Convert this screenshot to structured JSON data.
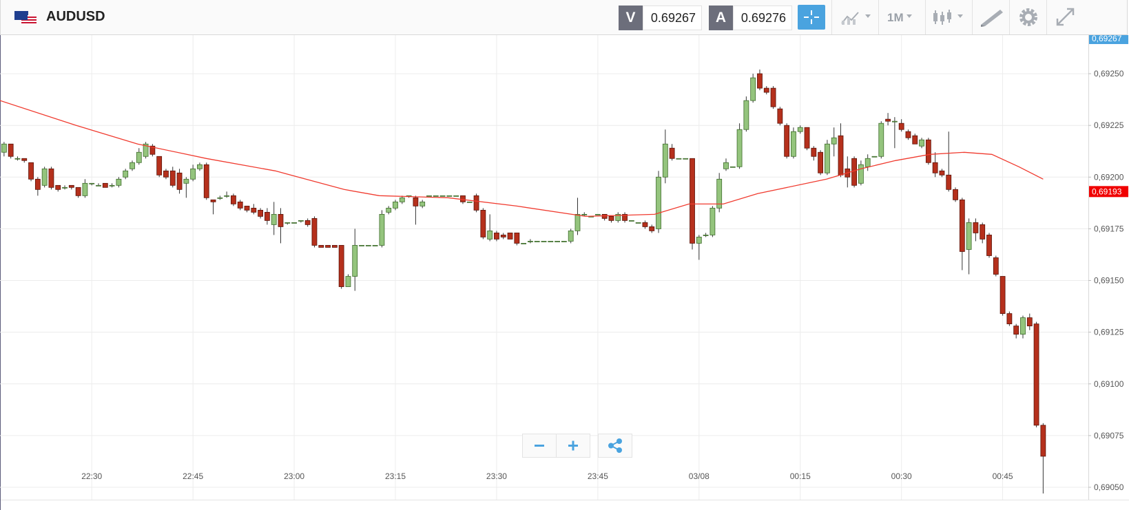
{
  "header": {
    "symbol": "AUDUSD",
    "bid_label": "V",
    "bid": "0.69267",
    "ask_label": "A",
    "ask": "0.69276",
    "timeframe": "1M"
  },
  "chart_data": {
    "type": "candlestick",
    "x": [
      17,
      18,
      19,
      20,
      21,
      22,
      23,
      24,
      25,
      26,
      27,
      28,
      29,
      30,
      31,
      32,
      33,
      34,
      35,
      36,
      37,
      38,
      39,
      40,
      41,
      42,
      43,
      44,
      45,
      46,
      47,
      48,
      49,
      50,
      51,
      52,
      53,
      54,
      55,
      56,
      57,
      58,
      59,
      60,
      61,
      62,
      63,
      64,
      65,
      66,
      67,
      68,
      69,
      70,
      71,
      72,
      73,
      74,
      75,
      76,
      77,
      78,
      79,
      80,
      81,
      82,
      83,
      84,
      85,
      86,
      87,
      88,
      89,
      90,
      91,
      92,
      93,
      94,
      95,
      96,
      97,
      98,
      99,
      100,
      101,
      102,
      103,
      104,
      105,
      106,
      107,
      108,
      109,
      110,
      111,
      112,
      113,
      114,
      115,
      116,
      117,
      118,
      119,
      120,
      121,
      122,
      123,
      124,
      125,
      126,
      127,
      128,
      129,
      130,
      131,
      132,
      133,
      134,
      135,
      136,
      137,
      138,
      139,
      140,
      141,
      142,
      143,
      144,
      145,
      146,
      147,
      148,
      149,
      150,
      151,
      152,
      153,
      154,
      155,
      156,
      157,
      158,
      159,
      160,
      161,
      162,
      163,
      164,
      165,
      166,
      167,
      168,
      169,
      170,
      171
    ],
    "candles": [
      [
        0.69212,
        0.69217,
        0.6921,
        0.69216
      ],
      [
        0.69216,
        0.69216,
        0.69209,
        0.6921
      ],
      [
        0.69209,
        0.6921,
        0.69208,
        0.69209
      ],
      [
        0.69209,
        0.69209,
        0.69207,
        0.69208
      ],
      [
        0.69207,
        0.69207,
        0.69198,
        0.69199
      ],
      [
        0.69199,
        0.692,
        0.69191,
        0.69194
      ],
      [
        0.69196,
        0.69205,
        0.69195,
        0.69204
      ],
      [
        0.69204,
        0.69205,
        0.69194,
        0.69195
      ],
      [
        0.69196,
        0.69196,
        0.69193,
        0.69194
      ],
      [
        0.69195,
        0.69196,
        0.69194,
        0.69195
      ],
      [
        0.69196,
        0.69196,
        0.69194,
        0.69195
      ],
      [
        0.69195,
        0.69195,
        0.6919,
        0.69191
      ],
      [
        0.69191,
        0.69199,
        0.6919,
        0.69197
      ],
      [
        0.69197,
        0.69197,
        0.69196,
        0.69197
      ],
      [
        0.69196,
        0.69197,
        0.69196,
        0.69196
      ],
      [
        0.69197,
        0.69197,
        0.69195,
        0.69195
      ],
      [
        0.69196,
        0.69197,
        0.69195,
        0.69196
      ],
      [
        0.69196,
        0.692,
        0.69195,
        0.69199
      ],
      [
        0.692,
        0.69204,
        0.69199,
        0.69203
      ],
      [
        0.69204,
        0.69208,
        0.69203,
        0.69207
      ],
      [
        0.69207,
        0.69214,
        0.69206,
        0.69212
      ],
      [
        0.6921,
        0.69217,
        0.69209,
        0.69216
      ],
      [
        0.69215,
        0.69216,
        0.6921,
        0.69211
      ],
      [
        0.6921,
        0.6921,
        0.692,
        0.69201
      ],
      [
        0.69203,
        0.69204,
        0.69199,
        0.692
      ],
      [
        0.69203,
        0.69205,
        0.69195,
        0.69196
      ],
      [
        0.69202,
        0.69204,
        0.69192,
        0.69194
      ],
      [
        0.69197,
        0.692,
        0.6919,
        0.69199
      ],
      [
        0.69199,
        0.69206,
        0.69198,
        0.69204
      ],
      [
        0.69204,
        0.69207,
        0.69203,
        0.69206
      ],
      [
        0.69206,
        0.69207,
        0.69189,
        0.6919
      ],
      [
        0.69189,
        0.69189,
        0.69182,
        0.69188
      ],
      [
        0.6919,
        0.69191,
        0.69189,
        0.6919
      ],
      [
        0.69191,
        0.69193,
        0.6919,
        0.69191
      ],
      [
        0.69191,
        0.69192,
        0.69186,
        0.69187
      ],
      [
        0.69188,
        0.69189,
        0.69184,
        0.69185
      ],
      [
        0.69186,
        0.69186,
        0.69183,
        0.69184
      ],
      [
        0.69185,
        0.69187,
        0.69182,
        0.69183
      ],
      [
        0.69184,
        0.69185,
        0.6918,
        0.69181
      ],
      [
        0.69183,
        0.69185,
        0.69177,
        0.69179
      ],
      [
        0.69177,
        0.69188,
        0.69172,
        0.69182
      ],
      [
        0.69182,
        0.69185,
        0.69168,
        0.69176
      ],
      [
        0.69178,
        0.69178,
        0.69177,
        0.69178
      ],
      [
        0.69178,
        0.69178,
        0.69178,
        0.69178
      ],
      [
        0.69179,
        0.69179,
        0.69178,
        0.69179
      ],
      [
        0.69179,
        0.6918,
        0.69176,
        0.69177
      ],
      [
        0.6918,
        0.69181,
        0.69166,
        0.69167
      ],
      [
        0.69167,
        0.69167,
        0.69166,
        0.69166
      ],
      [
        0.69167,
        0.69167,
        0.69166,
        0.69166
      ],
      [
        0.69167,
        0.69167,
        0.69166,
        0.69166
      ],
      [
        0.69167,
        0.69167,
        0.69146,
        0.69147
      ],
      [
        0.69147,
        0.69153,
        0.69147,
        0.69152
      ],
      [
        0.69152,
        0.69175,
        0.69145,
        0.69167
      ],
      [
        0.69167,
        0.69167,
        0.69167,
        0.69167
      ],
      [
        0.69167,
        0.69167,
        0.69167,
        0.69167
      ],
      [
        0.69167,
        0.69167,
        0.69167,
        0.69167
      ],
      [
        0.69167,
        0.69184,
        0.69166,
        0.69182
      ],
      [
        0.69183,
        0.69186,
        0.69182,
        0.69185
      ],
      [
        0.69185,
        0.69189,
        0.69184,
        0.69188
      ],
      [
        0.69188,
        0.69191,
        0.69187,
        0.6919
      ],
      [
        0.69191,
        0.69191,
        0.6919,
        0.69191
      ],
      [
        0.6919,
        0.69191,
        0.69177,
        0.69186
      ],
      [
        0.69186,
        0.69189,
        0.69185,
        0.69188
      ],
      [
        0.69191,
        0.69191,
        0.69191,
        0.69191
      ],
      [
        0.69191,
        0.69191,
        0.69191,
        0.69191
      ],
      [
        0.69191,
        0.69191,
        0.69191,
        0.69191
      ],
      [
        0.69191,
        0.69191,
        0.69191,
        0.69191
      ],
      [
        0.69191,
        0.69191,
        0.69191,
        0.69191
      ],
      [
        0.69191,
        0.69191,
        0.69187,
        0.69188
      ],
      [
        0.69188,
        0.69188,
        0.69188,
        0.69188
      ],
      [
        0.69191,
        0.69192,
        0.69183,
        0.69184
      ],
      [
        0.69184,
        0.69185,
        0.6917,
        0.69171
      ],
      [
        0.6917,
        0.69182,
        0.69169,
        0.69174
      ],
      [
        0.69173,
        0.69174,
        0.69169,
        0.6917
      ],
      [
        0.69172,
        0.69173,
        0.6917,
        0.69171
      ],
      [
        0.69173,
        0.69173,
        0.6917,
        0.6917
      ],
      [
        0.69173,
        0.69173,
        0.69167,
        0.69168
      ],
      [
        0.69168,
        0.69168,
        0.69168,
        0.69168
      ],
      [
        0.69169,
        0.6917,
        0.69168,
        0.69169
      ],
      [
        0.69169,
        0.69169,
        0.69169,
        0.69169
      ],
      [
        0.69169,
        0.69169,
        0.69169,
        0.69169
      ],
      [
        0.69169,
        0.69169,
        0.69169,
        0.69169
      ],
      [
        0.69169,
        0.69169,
        0.69169,
        0.69169
      ],
      [
        0.69169,
        0.69169,
        0.69169,
        0.69169
      ],
      [
        0.69169,
        0.69175,
        0.69168,
        0.69174
      ],
      [
        0.69174,
        0.6919,
        0.69172,
        0.69182
      ],
      [
        0.69182,
        0.69183,
        0.69181,
        0.69182
      ],
      [
        0.69181,
        0.69181,
        0.69181,
        0.69181
      ],
      [
        0.69182,
        0.69182,
        0.69182,
        0.69182
      ],
      [
        0.69182,
        0.69182,
        0.69179,
        0.6918
      ],
      [
        0.69181,
        0.69181,
        0.69178,
        0.69179
      ],
      [
        0.69179,
        0.69183,
        0.69178,
        0.69182
      ],
      [
        0.69182,
        0.69183,
        0.69178,
        0.69179
      ],
      [
        0.69179,
        0.69179,
        0.69179,
        0.69179
      ],
      [
        0.69178,
        0.69178,
        0.69178,
        0.69178
      ],
      [
        0.69178,
        0.69179,
        0.69175,
        0.69176
      ],
      [
        0.69176,
        0.69177,
        0.69173,
        0.69174
      ],
      [
        0.69175,
        0.69203,
        0.69173,
        0.692
      ],
      [
        0.692,
        0.69223,
        0.69197,
        0.69216
      ],
      [
        0.69214,
        0.69216,
        0.69208,
        0.69209
      ],
      [
        0.69209,
        0.69209,
        0.69209,
        0.69209
      ],
      [
        0.69209,
        0.69209,
        0.69209,
        0.69209
      ],
      [
        0.69209,
        0.69209,
        0.69165,
        0.69168
      ],
      [
        0.69168,
        0.69172,
        0.6916,
        0.69171
      ],
      [
        0.69172,
        0.69173,
        0.69171,
        0.69172
      ],
      [
        0.69172,
        0.69186,
        0.69171,
        0.69185
      ],
      [
        0.69185,
        0.69202,
        0.69183,
        0.69199
      ],
      [
        0.69204,
        0.69209,
        0.69203,
        0.69207
      ],
      [
        0.69205,
        0.69205,
        0.69205,
        0.69205
      ],
      [
        0.69205,
        0.69226,
        0.69204,
        0.69223
      ],
      [
        0.69223,
        0.69239,
        0.69222,
        0.69237
      ],
      [
        0.69237,
        0.6925,
        0.69236,
        0.69248
      ],
      [
        0.6925,
        0.69252,
        0.69242,
        0.69243
      ],
      [
        0.69243,
        0.69244,
        0.6924,
        0.69241
      ],
      [
        0.69243,
        0.69244,
        0.69233,
        0.69234
      ],
      [
        0.69233,
        0.69234,
        0.69225,
        0.69226
      ],
      [
        0.69225,
        0.69226,
        0.69209,
        0.6921
      ],
      [
        0.6921,
        0.69224,
        0.69209,
        0.69222
      ],
      [
        0.69222,
        0.69225,
        0.69221,
        0.69224
      ],
      [
        0.69224,
        0.69224,
        0.69213,
        0.69214
      ],
      [
        0.69214,
        0.69215,
        0.69208,
        0.6921
      ],
      [
        0.69212,
        0.69213,
        0.69201,
        0.69202
      ],
      [
        0.69202,
        0.69218,
        0.69201,
        0.69216
      ],
      [
        0.69216,
        0.69224,
        0.6921,
        0.69219
      ],
      [
        0.6922,
        0.69226,
        0.692,
        0.69201
      ],
      [
        0.69204,
        0.6921,
        0.69195,
        0.692
      ],
      [
        0.69209,
        0.6921,
        0.69195,
        0.69196
      ],
      [
        0.69197,
        0.69208,
        0.69196,
        0.69206
      ],
      [
        0.69205,
        0.69211,
        0.69203,
        0.69209
      ],
      [
        0.6921,
        0.6921,
        0.6921,
        0.6921
      ],
      [
        0.6921,
        0.69227,
        0.69209,
        0.69226
      ],
      [
        0.69228,
        0.69231,
        0.69225,
        0.69227
      ],
      [
        0.69227,
        0.69229,
        0.69214,
        0.69227
      ],
      [
        0.69226,
        0.69228,
        0.69222,
        0.69223
      ],
      [
        0.69222,
        0.69223,
        0.69218,
        0.69219
      ],
      [
        0.6922,
        0.69221,
        0.69216,
        0.69216
      ],
      [
        0.69215,
        0.69219,
        0.69214,
        0.69218
      ],
      [
        0.69218,
        0.69219,
        0.69206,
        0.69207
      ],
      [
        0.69207,
        0.69212,
        0.692,
        0.69202
      ],
      [
        0.69203,
        0.69204,
        0.692,
        0.69201
      ],
      [
        0.69201,
        0.69222,
        0.69193,
        0.69194
      ],
      [
        0.69194,
        0.69195,
        0.69188,
        0.69189
      ],
      [
        0.69189,
        0.6919,
        0.69155,
        0.69164
      ],
      [
        0.69165,
        0.6918,
        0.69153,
        0.69178
      ],
      [
        0.69178,
        0.6918,
        0.69169,
        0.69173
      ],
      [
        0.69177,
        0.69178,
        0.69168,
        0.6917
      ],
      [
        0.69172,
        0.69173,
        0.69161,
        0.69162
      ],
      [
        0.69161,
        0.69162,
        0.69152,
        0.69153
      ],
      [
        0.69152,
        0.69152,
        0.69133,
        0.69134
      ],
      [
        0.69134,
        0.69135,
        0.69128,
        0.69129
      ],
      [
        0.69128,
        0.69129,
        0.69122,
        0.69124
      ],
      [
        0.69124,
        0.69133,
        0.69122,
        0.69132
      ],
      [
        0.69132,
        0.69134,
        0.69126,
        0.69128
      ],
      [
        0.69129,
        0.6913,
        0.69079,
        0.6908
      ],
      [
        0.6908,
        0.69081,
        0.69047,
        0.69065
      ]
    ],
    "up_color": "#94c47d",
    "down_color": "#b5301c",
    "xlim": [
      16.4,
      177.7
    ],
    "xticks": [
      {
        "value": 30,
        "label": "22:30"
      },
      {
        "value": 45,
        "label": "22:45"
      },
      {
        "value": 60,
        "label": "23:00"
      },
      {
        "value": 75,
        "label": "23:15"
      },
      {
        "value": 90,
        "label": "23:30"
      },
      {
        "value": 105,
        "label": "23:45"
      },
      {
        "value": 120,
        "label": "03/08"
      },
      {
        "value": 135,
        "label": "00:15"
      },
      {
        "value": 150,
        "label": "00:30"
      },
      {
        "value": 165,
        "label": "00:45"
      }
    ],
    "ylim": [
      0.69044,
      0.69268
    ],
    "yticks": [
      {
        "value": 0.6905,
        "label": "0,69050"
      },
      {
        "value": 0.69075,
        "label": "0,69075"
      },
      {
        "value": 0.691,
        "label": "0,69100"
      },
      {
        "value": 0.69125,
        "label": "0,69125"
      },
      {
        "value": 0.6915,
        "label": "0,69150"
      },
      {
        "value": 0.69175,
        "label": "0,69175"
      },
      {
        "value": 0.692,
        "label": "0,69200"
      },
      {
        "value": 0.69225,
        "label": "0,69225"
      },
      {
        "value": 0.6925,
        "label": "0,69250"
      }
    ],
    "grid": true,
    "moving_average": {
      "color": "#f03a2e",
      "x": [
        16.4,
        27.7,
        36.8,
        47.0,
        57.2,
        67.4,
        72.6,
        82.8,
        93.0,
        103.2,
        113.4,
        118.5,
        123.6,
        128.7,
        138.9,
        144.0,
        149.1,
        154.2,
        159.3,
        163.4,
        167.4,
        171.0
      ],
      "values": [
        0.69237,
        0.69225,
        0.69216,
        0.69209,
        0.69203,
        0.69194,
        0.69191,
        0.6919,
        0.69186,
        0.69181,
        0.69182,
        0.69187,
        0.69187,
        0.69192,
        0.69199,
        0.69204,
        0.69208,
        0.69211,
        0.69212,
        0.69211,
        0.69205,
        0.69199
      ]
    },
    "price_tags": [
      {
        "value": 0.69267,
        "label": "0,69267",
        "color": "#4aa3df"
      },
      {
        "value": 0.69193,
        "label": "0,69193",
        "color": "#f00000"
      }
    ]
  }
}
